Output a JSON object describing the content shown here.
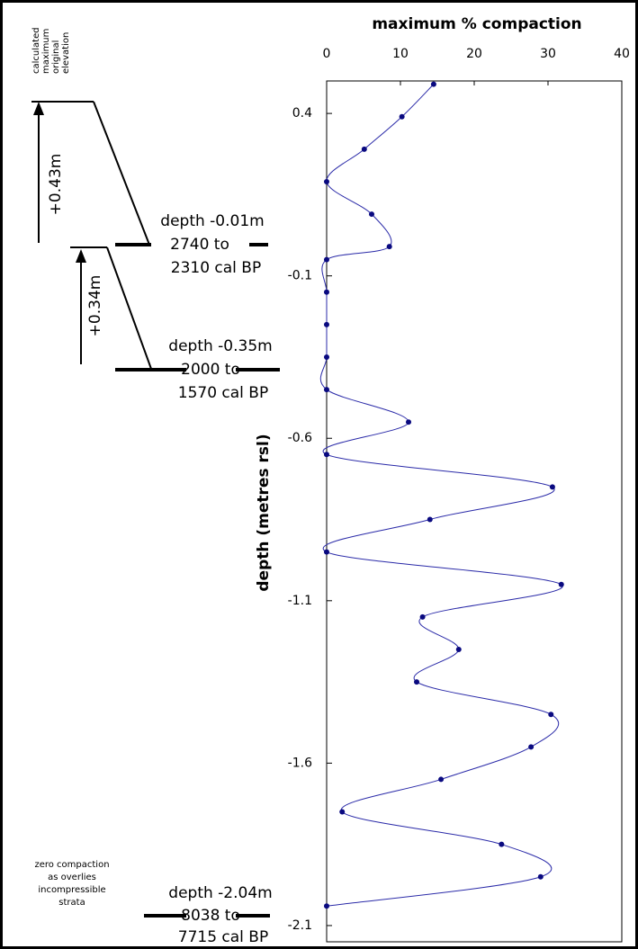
{
  "chart_data": {
    "type": "line",
    "title": "maximum % compaction",
    "y_label": "depth (metres rsl)",
    "x": [
      14.5,
      10.2,
      5.1,
      0,
      6.1,
      8.5,
      0,
      0,
      0,
      0,
      0,
      11.1,
      0,
      30.6,
      14.0,
      0,
      31.8,
      13.0,
      17.9,
      12.2,
      30.4,
      27.7,
      15.5,
      2.1,
      23.7,
      29.0,
      0
    ],
    "y": [
      0.49,
      0.39,
      0.29,
      0.19,
      0.09,
      -0.01,
      -0.05,
      -0.15,
      -0.25,
      -0.35,
      -0.45,
      -0.55,
      -0.65,
      -0.75,
      -0.85,
      -0.95,
      -1.05,
      -1.15,
      -1.25,
      -1.35,
      -1.45,
      -1.55,
      -1.65,
      -1.75,
      -1.85,
      -1.95,
      -2.04
    ],
    "color": "#2a2aa8",
    "marker_color": "#0a0a80",
    "xlim": [
      0,
      40
    ],
    "xticks": [
      0,
      10,
      20,
      30,
      40
    ],
    "ylim": [
      -2.15,
      0.5
    ],
    "yticks": [
      0.4,
      -0.1,
      -0.6,
      -1.1,
      -1.6,
      -2.1
    ]
  },
  "annotations": {
    "elevation_note": [
      "calculated",
      "maximum",
      "original",
      "elevation"
    ],
    "rise_1": "+0.43m",
    "rise_2": "+0.34m",
    "horizon_1": [
      "depth -0.01m",
      "2740 to",
      "2310 cal BP"
    ],
    "horizon_2": [
      "depth -0.35m",
      "2000 to",
      "1570 cal BP"
    ],
    "horizon_3": [
      "depth -2.04m",
      "8038 to",
      "7715 cal BP"
    ],
    "zero_note": [
      "zero compaction",
      "as overlies",
      "incompressible",
      "strata"
    ]
  }
}
